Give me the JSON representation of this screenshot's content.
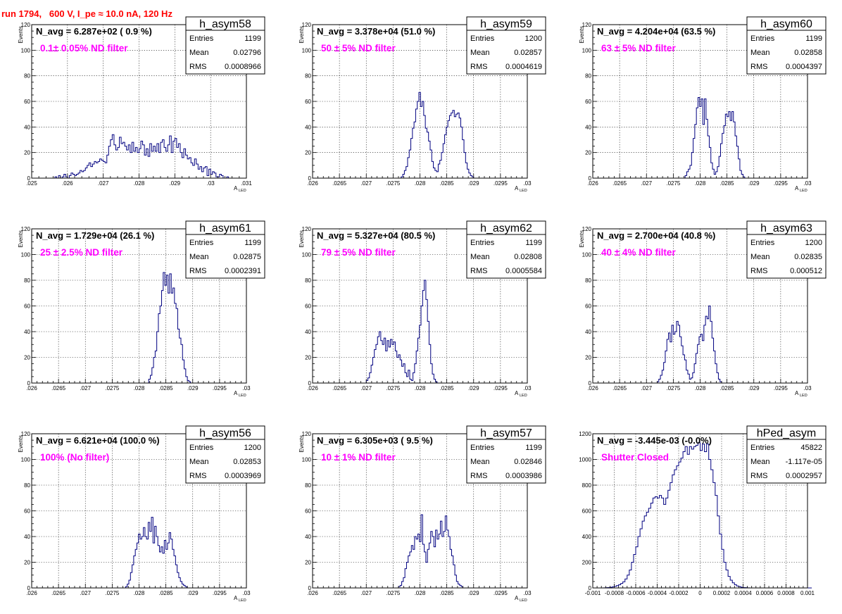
{
  "page": {
    "title": "run 1794,   600 V, I_pe ≈ 10.0 nA, 120 Hz"
  },
  "chart_data": [
    {
      "type": "bar",
      "name": "h_asym58",
      "xlabel": "A",
      "xlabel_sub": "LED",
      "ylabel": "Events",
      "xlim": [
        0.025,
        0.031
      ],
      "ylim": [
        0,
        120
      ],
      "xticks": [
        0.025,
        0.026,
        0.027,
        0.028,
        0.029,
        0.03,
        0.031
      ],
      "yticks": [
        0,
        20,
        40,
        60,
        80,
        100,
        120
      ],
      "navg": "N_avg = 6.287e+02 ( 0.9 %)",
      "note": "0.1± 0.05% ND filter",
      "stats": {
        "title": "h_asym58",
        "rows": [
          [
            "Entries",
            "1199"
          ],
          [
            "Mean",
            "0.02796"
          ],
          [
            "RMS",
            "0.0008966"
          ]
        ]
      },
      "bins": {
        "start": 0.02565,
        "width": 5e-05,
        "values": [
          1,
          0,
          2,
          0,
          1,
          3,
          1,
          0,
          2,
          4,
          3,
          2,
          3,
          4,
          6,
          5,
          6,
          8,
          10,
          12,
          9,
          11,
          13,
          12,
          13,
          15,
          14,
          13,
          12,
          18,
          25,
          30,
          34,
          26,
          22,
          24,
          32,
          27,
          28,
          25,
          22,
          26,
          20,
          28,
          21,
          24,
          20,
          23,
          29,
          26,
          18,
          23,
          17,
          27,
          21,
          25,
          21,
          27,
          20,
          28,
          30,
          24,
          21,
          26,
          33,
          20,
          29,
          31,
          24,
          27,
          20,
          16,
          23,
          18,
          15,
          16,
          12,
          10,
          15,
          11,
          7,
          9,
          5,
          8,
          9,
          2,
          7,
          3,
          5,
          4,
          1,
          1,
          3,
          2,
          0,
          0,
          1
        ]
      }
    },
    {
      "type": "bar",
      "name": "h_asym59",
      "xlabel": "A",
      "xlabel_sub": "LED",
      "ylabel": "Events",
      "xlim": [
        0.026,
        0.03
      ],
      "ylim": [
        0,
        120
      ],
      "xticks": [
        0.026,
        0.0265,
        0.027,
        0.0275,
        0.028,
        0.0285,
        0.029,
        0.0295,
        0.03
      ],
      "yticks": [
        0,
        20,
        40,
        60,
        80,
        100,
        120
      ],
      "navg": "N_avg = 3.378e+04 (51.0 %)",
      "note": "50 ± 5% ND filter",
      "stats": {
        "title": "h_asym59",
        "rows": [
          [
            "Entries",
            "1200"
          ],
          [
            "Mean",
            "0.02857"
          ],
          [
            "RMS",
            "0.0004619"
          ]
        ]
      },
      "bins": {
        "start": 0.02765,
        "width": 3e-05,
        "values": [
          1,
          3,
          6,
          9,
          16,
          22,
          31,
          39,
          44,
          54,
          60,
          67,
          56,
          60,
          49,
          39,
          36,
          29,
          22,
          13,
          8,
          6,
          5,
          11,
          14,
          20,
          27,
          34,
          40,
          45,
          49,
          51,
          53,
          48,
          50,
          51,
          47,
          40,
          30,
          20,
          12,
          7,
          4,
          2,
          1
        ]
      }
    },
    {
      "type": "bar",
      "name": "h_asym60",
      "xlabel": "A",
      "xlabel_sub": "LED",
      "ylabel": "Events",
      "xlim": [
        0.026,
        0.03
      ],
      "ylim": [
        0,
        120
      ],
      "xticks": [
        0.026,
        0.0265,
        0.027,
        0.0275,
        0.028,
        0.0285,
        0.029,
        0.0295,
        0.03
      ],
      "yticks": [
        0,
        20,
        40,
        60,
        80,
        100,
        120
      ],
      "navg": "N_avg = 4.204e+04 (63.5 %)",
      "note": "63 ± 5% ND filter",
      "stats": {
        "title": "h_asym60",
        "rows": [
          [
            "Entries",
            "1199"
          ],
          [
            "Mean",
            "0.02858"
          ],
          [
            "RMS",
            "0.0004397"
          ]
        ]
      },
      "bins": {
        "start": 0.02772,
        "width": 3e-05,
        "values": [
          2,
          5,
          7,
          10,
          20,
          31,
          42,
          55,
          63,
          56,
          62,
          42,
          62,
          46,
          33,
          24,
          12,
          7,
          3,
          5,
          9,
          17,
          27,
          35,
          41,
          50,
          48,
          52,
          45,
          52,
          44,
          33,
          25,
          15,
          6,
          3,
          1
        ]
      }
    },
    {
      "type": "bar",
      "name": "h_asym61",
      "xlabel": "A",
      "xlabel_sub": "LED",
      "ylabel": "Events",
      "xlim": [
        0.026,
        0.03
      ],
      "ylim": [
        0,
        120
      ],
      "xticks": [
        0.026,
        0.0265,
        0.027,
        0.0275,
        0.028,
        0.0285,
        0.029,
        0.0295,
        0.03
      ],
      "yticks": [
        0,
        20,
        40,
        60,
        80,
        100,
        120
      ],
      "navg": "N_avg = 1.729e+04 (26.1 %)",
      "note": "25 ± 2.5% ND filter",
      "stats": {
        "title": "h_asym61",
        "rows": [
          [
            "Entries",
            "1199"
          ],
          [
            "Mean",
            "0.02875"
          ],
          [
            "RMS",
            "0.0002391"
          ]
        ]
      },
      "bins": {
        "start": 0.02818,
        "width": 3e-05,
        "values": [
          3,
          6,
          12,
          20,
          25,
          40,
          54,
          60,
          72,
          86,
          76,
          84,
          70,
          85,
          70,
          74,
          62,
          58,
          42,
          35,
          30,
          18,
          11,
          5,
          2,
          1
        ]
      }
    },
    {
      "type": "bar",
      "name": "h_asym62",
      "xlabel": "A",
      "xlabel_sub": "LED",
      "ylabel": "Events",
      "xlim": [
        0.026,
        0.03
      ],
      "ylim": [
        0,
        120
      ],
      "xticks": [
        0.026,
        0.0265,
        0.027,
        0.0275,
        0.028,
        0.0285,
        0.029,
        0.0295,
        0.03
      ],
      "yticks": [
        0,
        20,
        40,
        60,
        80,
        100,
        120
      ],
      "navg": "N_avg = 5.327e+04 (80.5 %)",
      "note": "79 ± 5% ND filter",
      "stats": {
        "title": "h_asym62",
        "rows": [
          [
            "Entries",
            "1199"
          ],
          [
            "Mean",
            "0.02808"
          ],
          [
            "RMS",
            "0.0005584"
          ]
        ]
      },
      "bins": {
        "start": 0.027,
        "width": 3e-05,
        "values": [
          2,
          4,
          8,
          14,
          20,
          26,
          30,
          36,
          40,
          33,
          30,
          35,
          25,
          33,
          28,
          34,
          30,
          32,
          25,
          20,
          22,
          18,
          13,
          15,
          8,
          5,
          10,
          3,
          2,
          8,
          15,
          25,
          35,
          45,
          60,
          72,
          80,
          65,
          48,
          30,
          15,
          7,
          3,
          1
        ]
      }
    },
    {
      "type": "bar",
      "name": "h_asym63",
      "xlabel": "A",
      "xlabel_sub": "LED",
      "ylabel": "Events",
      "xlim": [
        0.026,
        0.03
      ],
      "ylim": [
        0,
        120
      ],
      "xticks": [
        0.026,
        0.0265,
        0.027,
        0.0275,
        0.028,
        0.0285,
        0.029,
        0.0295,
        0.03
      ],
      "yticks": [
        0,
        20,
        40,
        60,
        80,
        100,
        120
      ],
      "navg": "N_avg = 2.700e+04 (40.8 %)",
      "note": "40 ± 4% ND filter",
      "stats": {
        "title": "h_asym63",
        "rows": [
          [
            "Entries",
            "1200"
          ],
          [
            "Mean",
            "0.02835"
          ],
          [
            "RMS",
            "0.000512"
          ]
        ]
      },
      "bins": {
        "start": 0.0272,
        "width": 3e-05,
        "values": [
          1,
          3,
          6,
          10,
          16,
          25,
          34,
          39,
          32,
          45,
          38,
          40,
          48,
          45,
          36,
          29,
          22,
          18,
          10,
          7,
          3,
          4,
          8,
          15,
          23,
          30,
          36,
          38,
          33,
          45,
          52,
          50,
          60,
          48,
          35,
          25,
          15,
          8,
          3,
          1
        ]
      }
    },
    {
      "type": "bar",
      "name": "h_asym56",
      "xlabel": "A",
      "xlabel_sub": "LED",
      "ylabel": "Events",
      "xlim": [
        0.026,
        0.03
      ],
      "ylim": [
        0,
        120
      ],
      "xticks": [
        0.026,
        0.0265,
        0.027,
        0.0275,
        0.028,
        0.0285,
        0.029,
        0.0295,
        0.03
      ],
      "yticks": [
        0,
        20,
        40,
        60,
        80,
        100,
        120
      ],
      "navg": "N_avg = 6.621e+04 (100.0 %)",
      "note": "100% (No filter)",
      "stats": {
        "title": "h_asym56",
        "rows": [
          [
            "Entries",
            "1200"
          ],
          [
            "Mean",
            "0.02853"
          ],
          [
            "RMS",
            "0.0003969"
          ]
        ]
      },
      "bins": {
        "start": 0.02775,
        "width": 3e-05,
        "values": [
          1,
          3,
          6,
          12,
          18,
          25,
          30,
          35,
          42,
          38,
          40,
          47,
          40,
          38,
          51,
          44,
          55,
          35,
          48,
          40,
          33,
          28,
          32,
          27,
          37,
          30,
          35,
          43,
          38,
          30,
          25,
          18,
          12,
          8,
          5,
          3,
          2,
          1
        ]
      }
    },
    {
      "type": "bar",
      "name": "h_asym57",
      "xlabel": "A",
      "xlabel_sub": "LED",
      "ylabel": "Events",
      "xlim": [
        0.026,
        0.03
      ],
      "ylim": [
        0,
        120
      ],
      "xticks": [
        0.026,
        0.0265,
        0.027,
        0.0275,
        0.028,
        0.0285,
        0.029,
        0.0295,
        0.03
      ],
      "yticks": [
        0,
        20,
        40,
        60,
        80,
        100,
        120
      ],
      "navg": "N_avg = 6.305e+03 ( 9.5 %)",
      "note": "10 ± 1% ND filter",
      "stats": {
        "title": "h_asym57",
        "rows": [
          [
            "Entries",
            "1199"
          ],
          [
            "Mean",
            "0.02846"
          ],
          [
            "RMS",
            "0.0003986"
          ]
        ]
      },
      "bins": {
        "start": 0.0276,
        "width": 3e-05,
        "values": [
          1,
          2,
          5,
          8,
          15,
          20,
          25,
          28,
          33,
          30,
          40,
          38,
          42,
          36,
          57,
          34,
          28,
          20,
          30,
          35,
          44,
          40,
          32,
          45,
          38,
          42,
          52,
          40,
          44,
          56,
          45,
          40,
          30,
          25,
          18,
          10,
          5,
          3,
          2,
          1
        ]
      }
    },
    {
      "type": "bar",
      "name": "hPed_asym",
      "xlabel": "",
      "xlabel_sub": "",
      "ylabel": "",
      "xlim": [
        -0.001,
        0.001
      ],
      "ylim": [
        0,
        1200
      ],
      "xticks": [
        -0.001,
        -0.0008,
        -0.0006,
        -0.0004,
        -0.0002,
        0,
        0.0002,
        0.0004,
        0.0006,
        0.0008,
        0.001
      ],
      "xticklabels": [
        "-0.001",
        "-0.0008",
        "-0.0006",
        "-0.0004",
        "-0.0002",
        "0",
        "0.0002",
        "0.0004",
        "0.0006",
        "0.0008",
        "0.001"
      ],
      "yticks": [
        0,
        200,
        400,
        600,
        800,
        1000,
        1200
      ],
      "navg": "N_avg = -3.445e-03 (-0.0%)",
      "note": "Shutter Closed",
      "stats": {
        "title": "hPed_asym",
        "rows": [
          [
            "Entries",
            "45822"
          ],
          [
            "Mean",
            "-1.117e-05"
          ],
          [
            "RMS",
            "0.0002957"
          ]
        ]
      },
      "bins": {
        "start": -0.001,
        "width": 2e-05,
        "values": [
          0,
          0,
          0,
          0,
          0,
          1,
          2,
          3,
          5,
          8,
          12,
          18,
          25,
          35,
          48,
          70,
          100,
          140,
          200,
          260,
          320,
          400,
          460,
          520,
          560,
          590,
          620,
          660,
          700,
          710,
          700,
          720,
          700,
          650,
          700,
          760,
          820,
          880,
          920,
          950,
          980,
          1010,
          1060,
          1100,
          1040,
          1100,
          1080,
          1100,
          1110,
          1130,
          1070,
          1120,
          1060,
          1120,
          1000,
          920,
          820,
          720,
          560,
          420,
          300,
          200,
          140,
          90,
          60,
          40,
          25,
          15,
          10,
          5,
          3,
          2,
          1,
          0,
          0,
          0,
          0,
          0,
          0,
          0,
          0,
          0,
          0,
          0,
          0,
          0,
          0,
          0,
          0,
          0,
          0,
          0,
          0,
          0,
          0,
          0,
          0,
          0,
          0,
          0,
          0,
          0
        ]
      }
    }
  ]
}
